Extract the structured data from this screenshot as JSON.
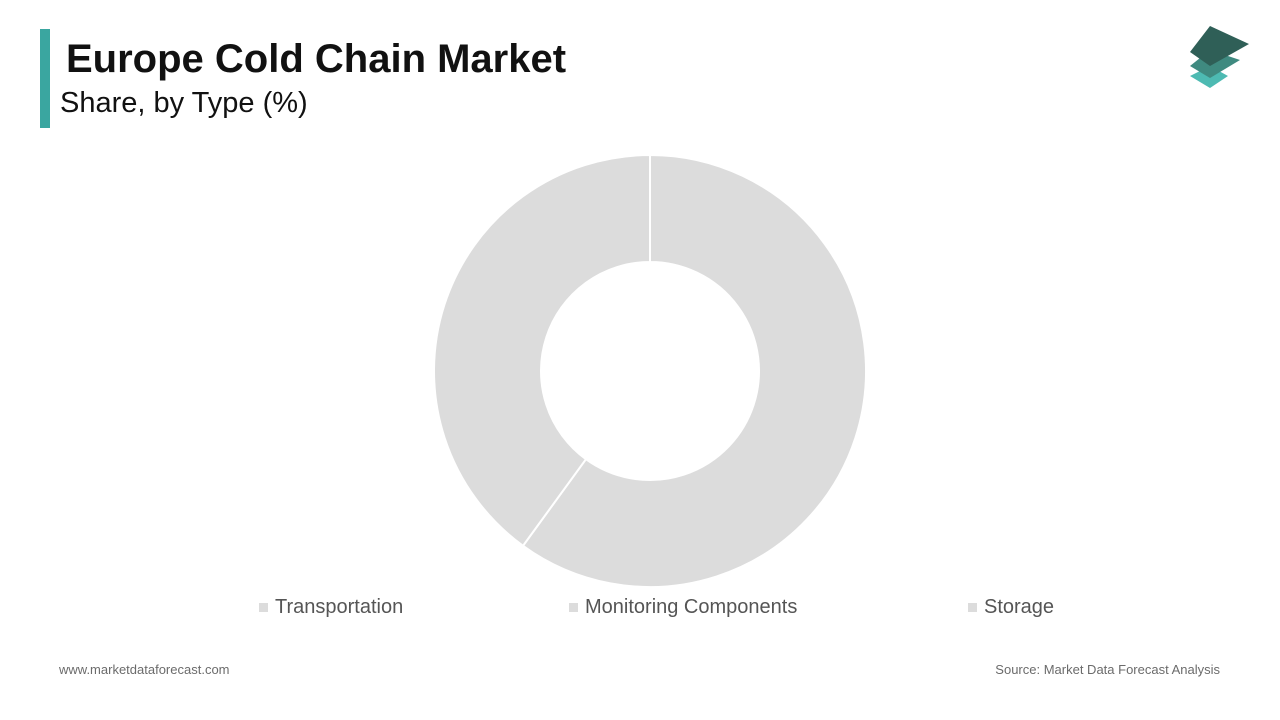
{
  "header": {
    "title": "Europe Cold Chain Market",
    "subtitle": "Share, by Type (%)"
  },
  "colors": {
    "accent": "#3aa6a0",
    "slice": "#dcdcdc",
    "separator": "#ffffff",
    "logo_dark": "#2f5f57",
    "logo_mid": "#3f8a80",
    "logo_light": "#4dbab2"
  },
  "chart_data": {
    "type": "pie",
    "variant": "donut",
    "title": "Europe Cold Chain Market",
    "subtitle": "Share, by Type (%)",
    "categories": [
      "Transportation",
      "Monitoring Components",
      "Storage"
    ],
    "values": [
      60,
      40,
      0
    ],
    "legend_position": "bottom",
    "show_data_labels": false
  },
  "legend": {
    "items": [
      "Transportation",
      "Monitoring Components",
      "Storage"
    ]
  },
  "footer": {
    "website": "www.marketdataforecast.com",
    "source": "Source: Market Data Forecast Analysis"
  }
}
